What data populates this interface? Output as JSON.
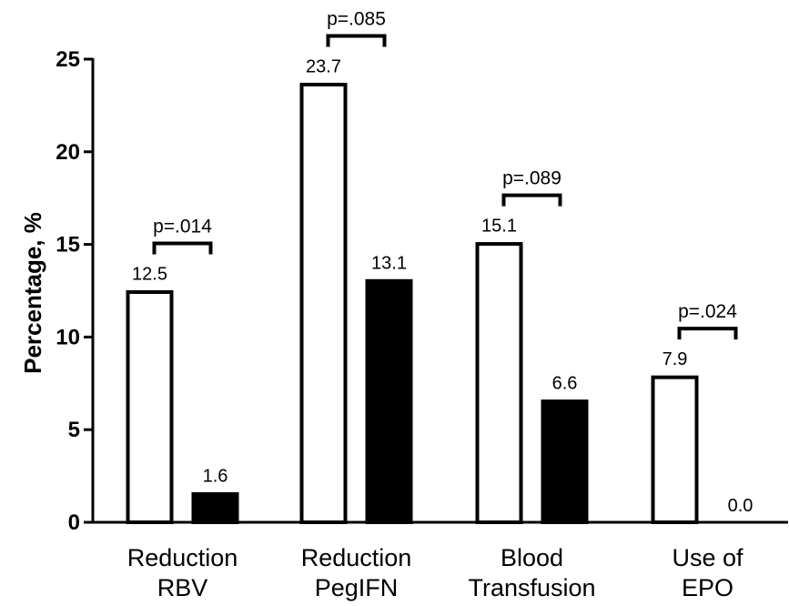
{
  "chart_data": {
    "type": "bar",
    "title": "",
    "xlabel": "",
    "ylabel": "Percentage, %",
    "ylim": [
      0,
      25
    ],
    "yticks": [
      "0",
      "5",
      "10",
      "15",
      "20",
      "25"
    ],
    "categories": [
      [
        "Reduction",
        "RBV"
      ],
      [
        "Reduction",
        "PegIFN"
      ],
      [
        "Blood",
        "Transfusion"
      ],
      [
        "Use of",
        "EPO"
      ]
    ],
    "series": [
      {
        "values": [
          12.5,
          23.7,
          15.1,
          7.9
        ],
        "value_labels": [
          "12.5",
          "23.7",
          "15.1",
          "7.9"
        ],
        "fill": "#ffffff",
        "stroke": "#000000"
      },
      {
        "values": [
          1.6,
          13.1,
          6.6,
          0.0
        ],
        "value_labels": [
          "1.6",
          "13.1",
          "6.6",
          "0.0"
        ],
        "fill": "#000000",
        "stroke": "#000000"
      }
    ],
    "p_values": [
      "p=.014",
      "p=.085",
      "p=.089",
      "p=.024"
    ],
    "grid": false,
    "legend": "none"
  }
}
